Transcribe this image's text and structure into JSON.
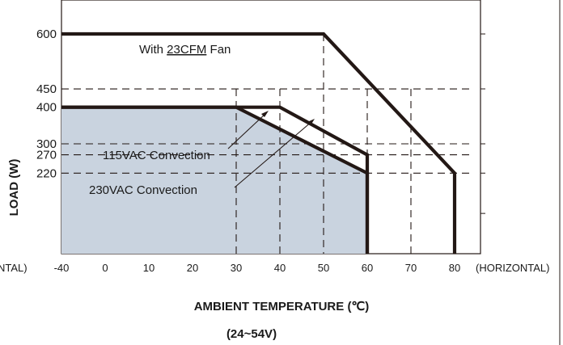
{
  "chart_data": {
    "type": "line",
    "xlabel": "AMBIENT TEMPERATURE (℃)",
    "subtitle": "(24~54V)",
    "ylabel": "LOAD (W)",
    "x_left_note": "NTAL)",
    "x_right_note": "(HORIZONTAL)",
    "xlim": [
      -40,
      80
    ],
    "ylim": [
      0,
      640
    ],
    "x_ticks": [
      -40,
      0,
      10,
      20,
      30,
      40,
      50,
      60,
      70,
      80
    ],
    "x_tick_labels": [
      "-40",
      "0",
      "10",
      "20",
      "30",
      "40",
      "50",
      "60",
      "70",
      "80"
    ],
    "y_ticks": [
      220,
      270,
      300,
      400,
      450,
      600
    ],
    "y_tick_labels": [
      "220",
      "270",
      "300",
      "400",
      "450",
      "600"
    ],
    "annotations": {
      "fan_prefix": "With ",
      "fan_value": "23CFM",
      "fan_suffix": " Fan",
      "ac115": "115VAC Convection",
      "ac230": "230VAC Convection"
    },
    "series": [
      {
        "name": "With 23CFM Fan",
        "points": [
          [
            -40,
            600
          ],
          [
            50,
            600
          ],
          [
            80,
            220
          ],
          [
            80,
            0
          ]
        ]
      },
      {
        "name": "115VAC Convection",
        "points": [
          [
            -40,
            400
          ],
          [
            40,
            400
          ],
          [
            60,
            270
          ],
          [
            60,
            0
          ]
        ]
      },
      {
        "name": "230VAC Convection",
        "points": [
          [
            -40,
            400
          ],
          [
            30,
            400
          ],
          [
            60,
            220
          ],
          [
            60,
            0
          ]
        ]
      }
    ],
    "reference_lines": {
      "vertical": [
        30,
        40,
        50,
        60,
        70
      ],
      "horizontal": [
        220,
        270,
        300,
        450
      ]
    },
    "colors": {
      "fill": "#c9d3df",
      "line": "#231815",
      "grid": "#231815"
    }
  }
}
